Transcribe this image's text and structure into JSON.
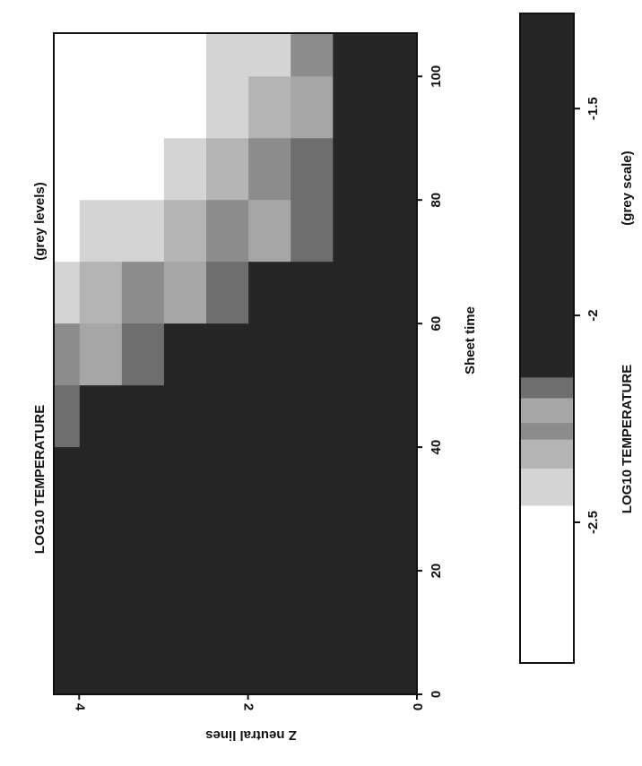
{
  "chart_data": [
    {
      "type": "heatmap",
      "title": "LOG10 TEMPERATURE",
      "subtitle": "(grey levels)",
      "x_label": "Sheet time",
      "y_label": "Z neutral lines",
      "x_bins": [
        0,
        10,
        20,
        30,
        40,
        50,
        60,
        70,
        80,
        90,
        100,
        107
      ],
      "y_bins": [
        0,
        0.5,
        1,
        1.5,
        2,
        2.5,
        3,
        3.5,
        4,
        4.3
      ],
      "values": [
        [
          -1.5,
          -1.5,
          -1.5,
          -1.5,
          -1.5,
          -1.5,
          -1.5,
          -1.5,
          -1.5,
          -1.5,
          -1.5
        ],
        [
          -1.5,
          -1.5,
          -1.5,
          -1.5,
          -1.5,
          -1.5,
          -1.5,
          -1.8,
          -1.9,
          -2.0,
          -2.1
        ],
        [
          -1.5,
          -1.5,
          -1.5,
          -1.5,
          -1.5,
          -2.0,
          -2.1,
          -2.2,
          -2.2,
          -2.25,
          -2.3
        ],
        [
          -1.5,
          -1.5,
          -1.5,
          -1.5,
          -1.6,
          -2.05,
          -2.15,
          -2.25,
          -2.3,
          -2.35,
          -2.4
        ],
        [
          -1.5,
          -1.5,
          -1.5,
          -1.5,
          -1.9,
          -2.1,
          -2.2,
          -2.3,
          -2.35,
          -2.4,
          -2.45
        ],
        [
          -1.5,
          -1.5,
          -1.5,
          -1.5,
          -2.0,
          -2.15,
          -2.25,
          -2.35,
          -2.4,
          -2.5,
          -2.6
        ],
        [
          -1.5,
          -1.5,
          -1.5,
          -1.5,
          -2.05,
          -2.2,
          -2.3,
          -2.4,
          -2.5,
          -2.6,
          -2.7
        ],
        [
          -1.5,
          -1.5,
          -1.5,
          -1.9,
          -2.1,
          -2.25,
          -2.35,
          -2.45,
          -2.55,
          -2.65,
          -2.7
        ],
        [
          -1.5,
          -1.5,
          -1.5,
          -2.0,
          -2.2,
          -2.3,
          -2.4,
          -2.5,
          -2.6,
          -2.7,
          -2.7
        ]
      ],
      "xlim": [
        0,
        107
      ],
      "ylim": [
        0,
        4.3
      ],
      "xticks": [
        0,
        20,
        40,
        60,
        80,
        100
      ],
      "yticks": [
        0,
        2,
        4
      ]
    },
    {
      "type": "colorbar",
      "title": "LOG10 TEMPERATURE",
      "subtitle": "(grey scale)",
      "bounds": [
        -2.84,
        -2.46,
        -2.37,
        -2.3,
        -2.26,
        -2.2,
        -2.15,
        -1.27
      ],
      "colors": [
        "#ffffff",
        "#d4d4d4",
        "#b4b4b4",
        "#8c8c8c",
        "#a6a6a6",
        "#6e6e6e",
        "#262626"
      ],
      "xlim": [
        -2.84,
        -1.27
      ],
      "xticks": [
        -2.5,
        -2,
        -1.5
      ]
    }
  ]
}
